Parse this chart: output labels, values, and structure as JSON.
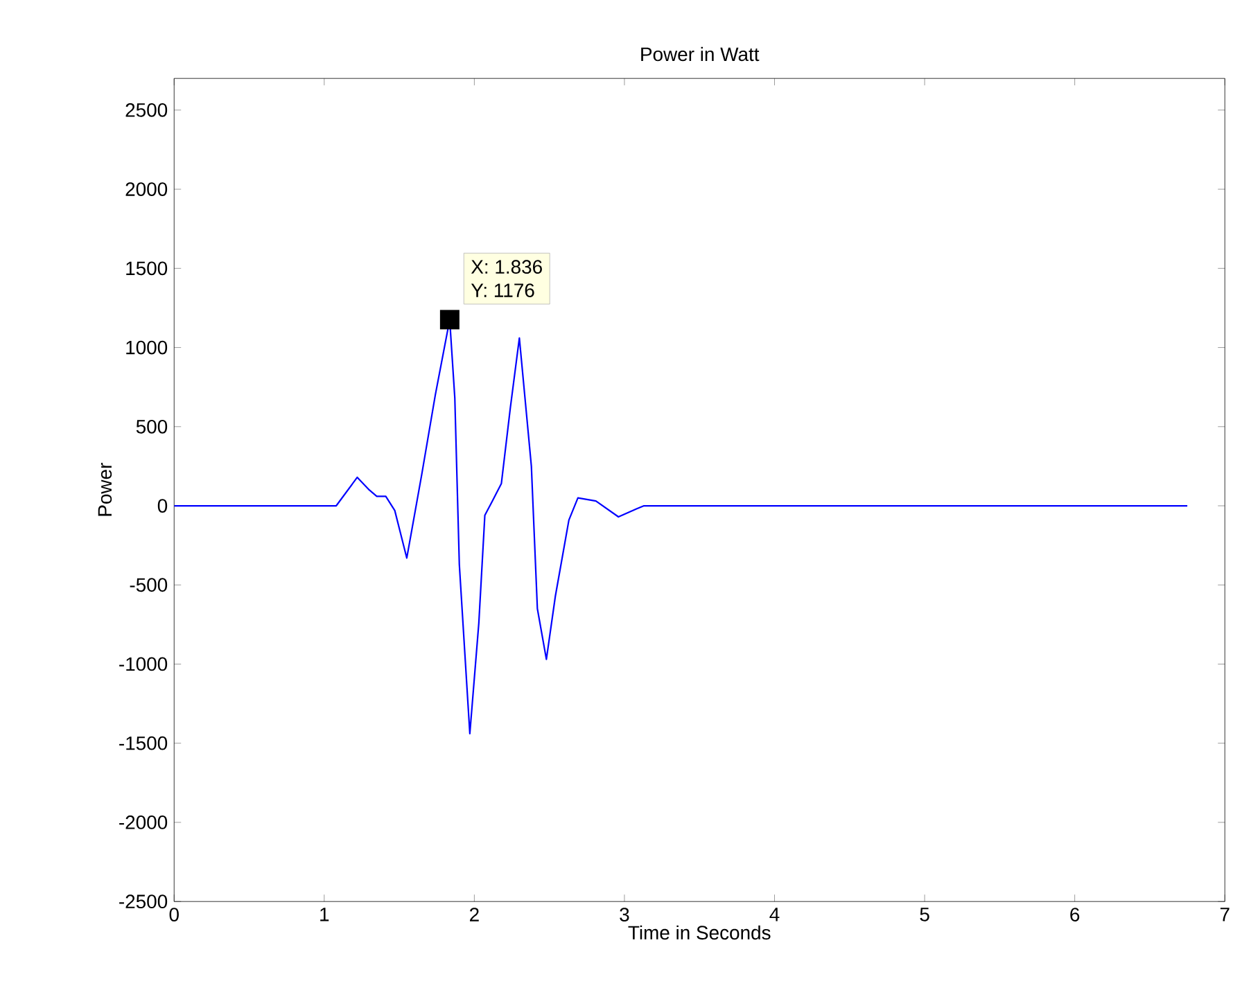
{
  "chart_data": {
    "type": "line",
    "title": "Power in Watt",
    "xlabel": "Time in Seconds",
    "ylabel": "Power",
    "series": [
      {
        "color": "#0000ff",
        "x": [
          0,
          1.08,
          1.22,
          1.3,
          1.35,
          1.41,
          1.47,
          1.55,
          1.65,
          1.74,
          1.836,
          1.87,
          1.9,
          1.97,
          2.03,
          2.07,
          2.12,
          2.18,
          2.24,
          2.3,
          2.38,
          2.42,
          2.48,
          2.54,
          2.63,
          2.69,
          2.81,
          2.96,
          3.08,
          3.13,
          6.75
        ],
        "values": [
          0,
          0,
          180,
          100,
          60,
          60,
          -30,
          -330,
          200,
          700,
          1176,
          680,
          -370,
          -1440,
          -740,
          -60,
          30,
          140,
          620,
          1060,
          250,
          -650,
          -970,
          -570,
          -90,
          50,
          30,
          -70,
          -20,
          0,
          0
        ]
      }
    ],
    "xlim": [
      0,
      7
    ],
    "ylim": [
      -2500,
      2700
    ],
    "xticks": [
      0,
      1,
      2,
      3,
      4,
      5,
      6,
      7
    ],
    "yticks": [
      -2500,
      -2000,
      -1500,
      -1000,
      -500,
      0,
      500,
      1000,
      1500,
      2000,
      2500
    ],
    "annotations": [
      {
        "text": "X: 1.836",
        "x": 1.836,
        "y": 1176
      },
      {
        "text": "Y: 1176",
        "x": 1.836,
        "y": 1176
      }
    ]
  }
}
